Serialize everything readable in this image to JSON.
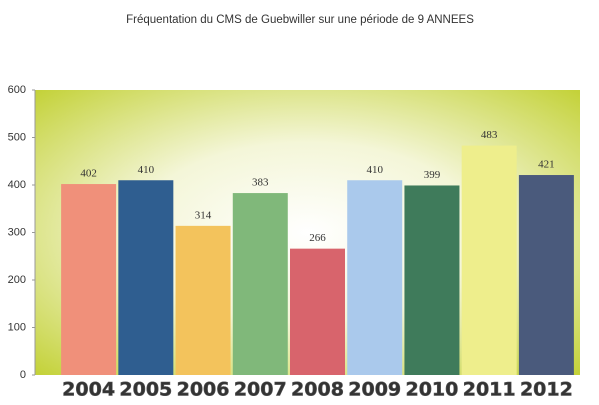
{
  "chart_data": {
    "type": "bar",
    "title": "Fréquentation du CMS de Guebwiller sur une période de 9 ANNEES",
    "categories": [
      "2004",
      "2005",
      "2006",
      "2007",
      "2008",
      "2009",
      "2010",
      "2011",
      "2012"
    ],
    "values": [
      402,
      410,
      314,
      383,
      266,
      410,
      399,
      483,
      421
    ],
    "colors": [
      "#f0907a",
      "#2f5e90",
      "#f3c35c",
      "#80b87a",
      "#d8646c",
      "#aac9ec",
      "#3f7b5b",
      "#eeee8c",
      "#4a5a7c"
    ],
    "ylim": [
      0,
      600
    ],
    "yticks": [
      0,
      100,
      200,
      300,
      400,
      500,
      600
    ],
    "grid": false
  }
}
